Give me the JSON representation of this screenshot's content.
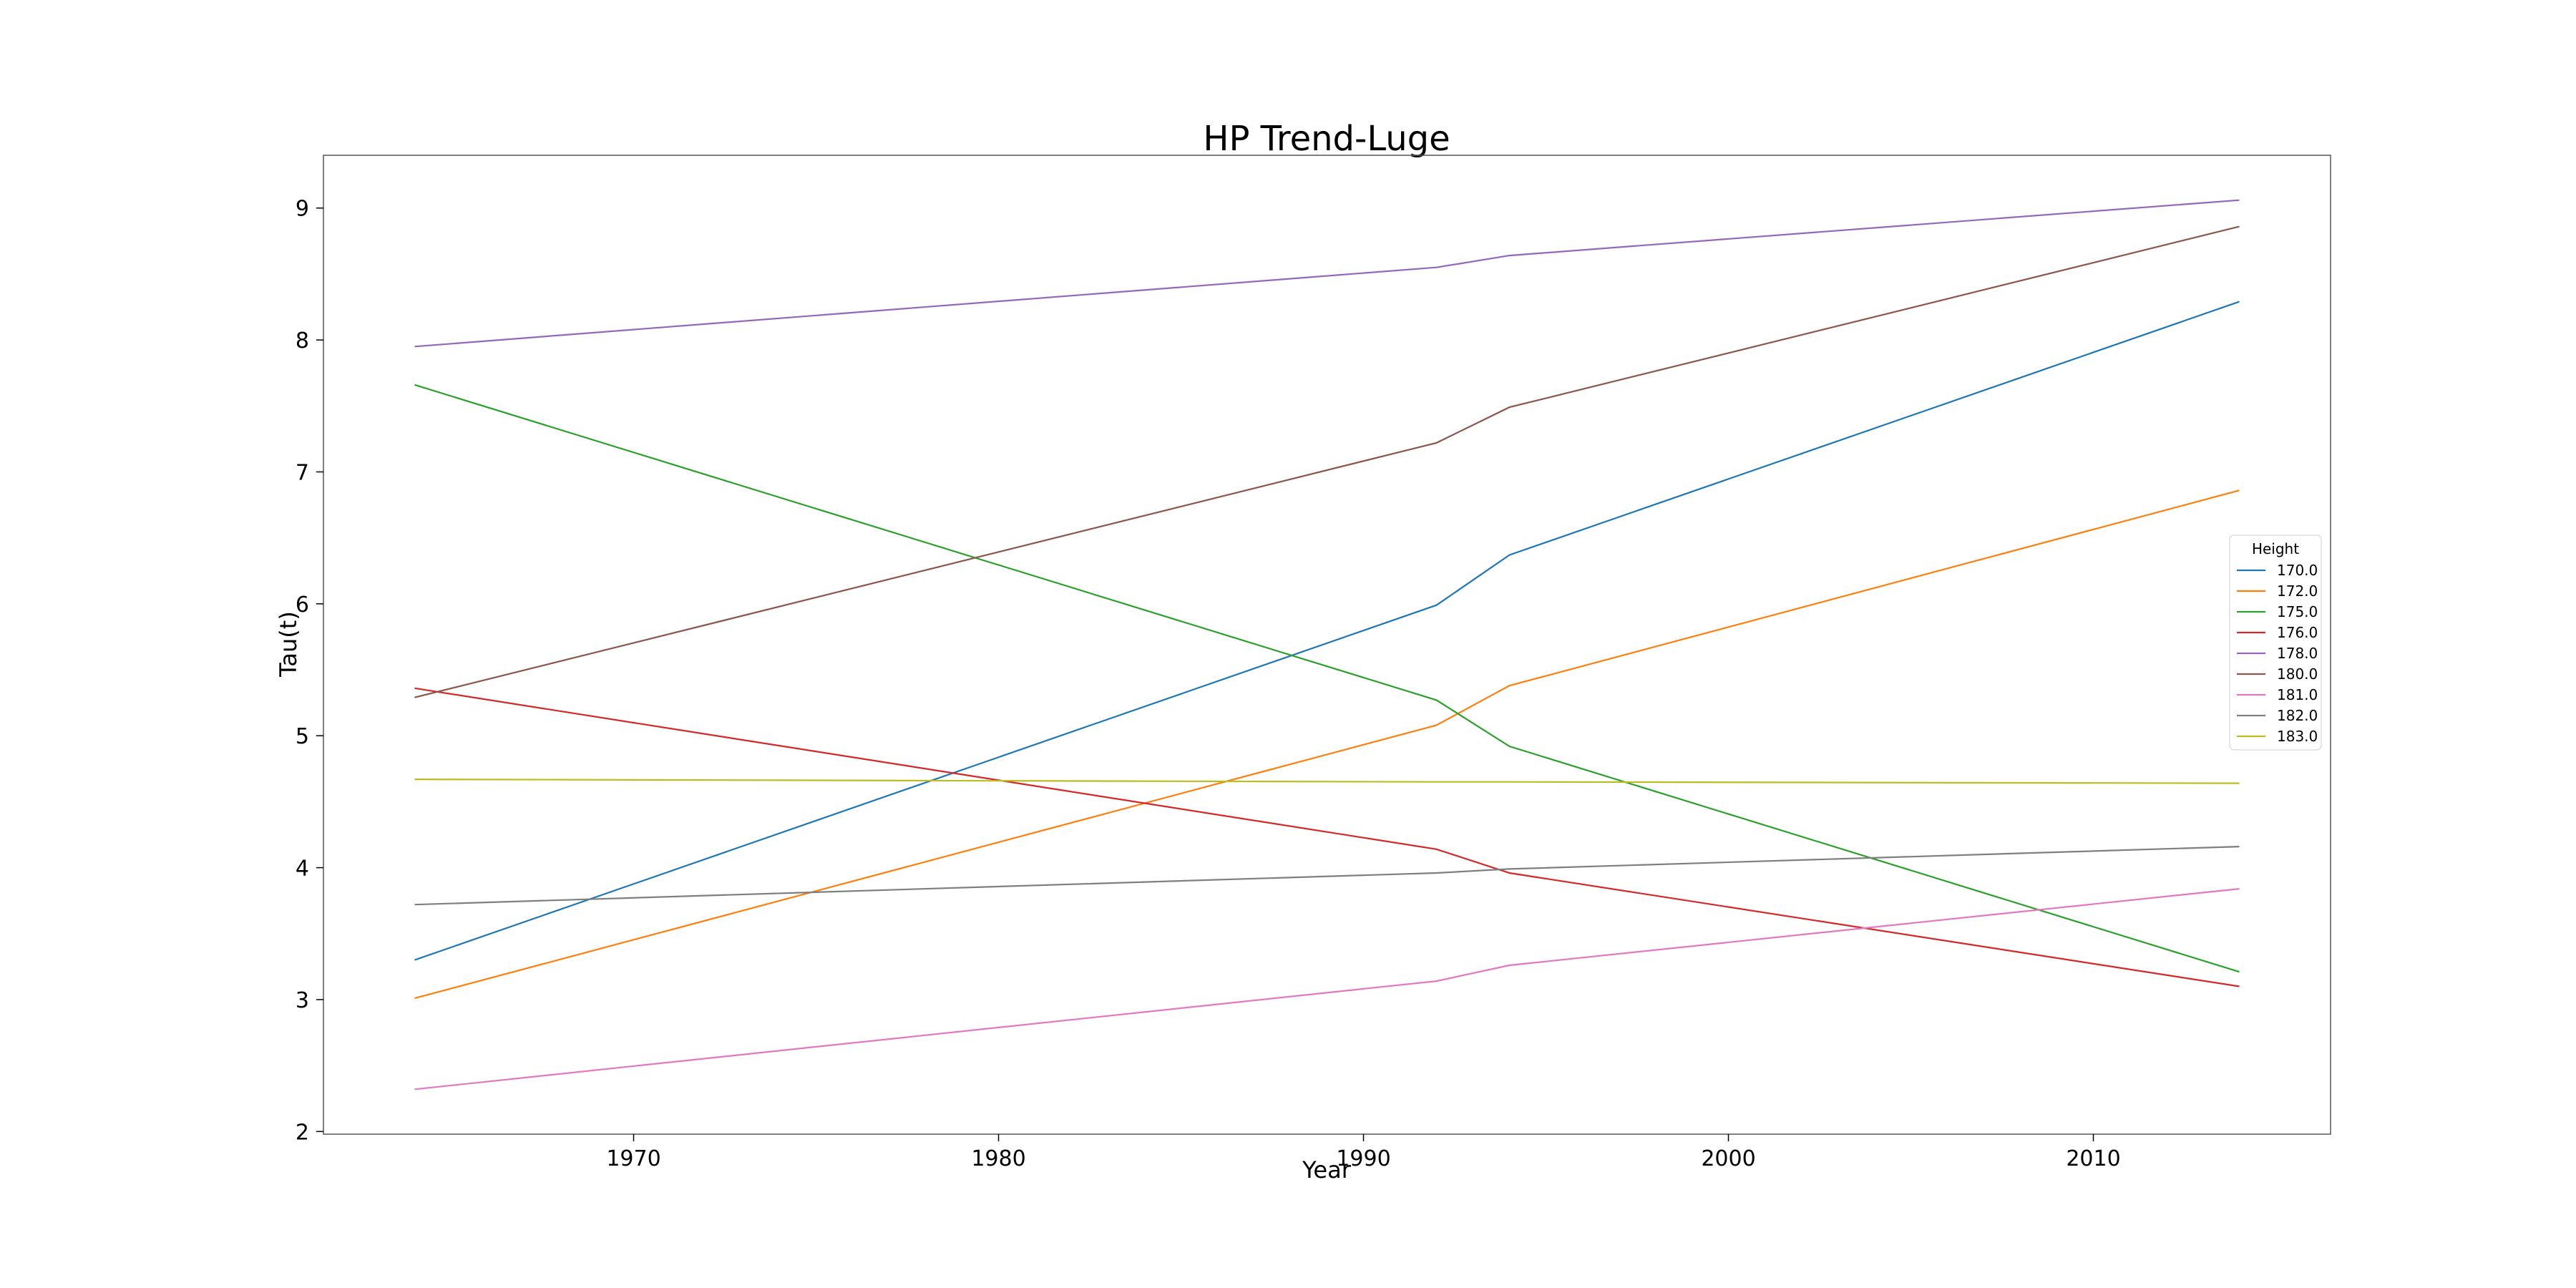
{
  "chart_data": {
    "type": "line",
    "title": "HP Trend-Luge",
    "xlabel": "Year",
    "ylabel": "Tau(t)",
    "xlim": [
      1961.5,
      2016.5
    ],
    "ylim": [
      1.98,
      9.4
    ],
    "xticks": [
      1970,
      1980,
      1990,
      2000,
      2010
    ],
    "yticks": [
      2,
      3,
      4,
      5,
      6,
      7,
      8,
      9
    ],
    "grid": false,
    "legend": {
      "title": "Height",
      "placement": "center-right"
    },
    "x": [
      1964,
      1992,
      1994,
      2014
    ],
    "series": [
      {
        "name": "170.0",
        "color": "#1f77b4",
        "values": [
          3.3,
          5.99,
          6.37,
          8.29
        ]
      },
      {
        "name": "172.0",
        "color": "#ff7f0e",
        "values": [
          3.01,
          5.08,
          5.38,
          6.86
        ]
      },
      {
        "name": "175.0",
        "color": "#2ca02c",
        "values": [
          7.66,
          5.27,
          4.92,
          3.21
        ]
      },
      {
        "name": "176.0",
        "color": "#d62728",
        "values": [
          5.36,
          4.14,
          3.96,
          3.1
        ]
      },
      {
        "name": "178.0",
        "color": "#9467bd",
        "values": [
          7.95,
          8.55,
          8.64,
          9.06
        ]
      },
      {
        "name": "180.0",
        "color": "#8c564b",
        "values": [
          5.29,
          7.22,
          7.49,
          8.86
        ]
      },
      {
        "name": "181.0",
        "color": "#e377c2",
        "values": [
          2.32,
          3.14,
          3.26,
          3.84
        ]
      },
      {
        "name": "182.0",
        "color": "#7f7f7f",
        "values": [
          3.72,
          3.96,
          3.99,
          4.16
        ]
      },
      {
        "name": "183.0",
        "color": "#bcbd22",
        "values": [
          4.67,
          4.65,
          4.65,
          4.64
        ]
      }
    ]
  }
}
